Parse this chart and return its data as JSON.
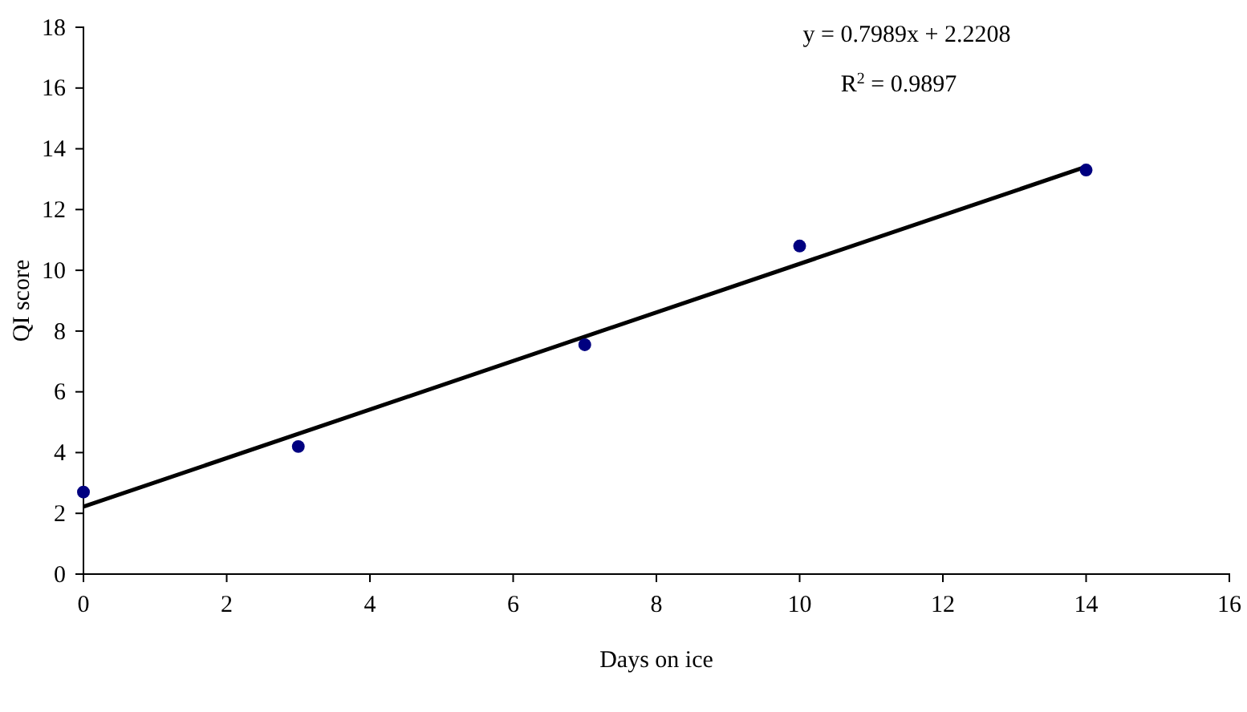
{
  "chart_data": {
    "type": "scatter",
    "xlabel": "Days on ice",
    "ylabel": "QI score",
    "xlim": [
      0,
      16
    ],
    "xticks": [
      0,
      2,
      4,
      6,
      8,
      10,
      12,
      14,
      16
    ],
    "ylim": [
      0,
      18
    ],
    "yticks": [
      0,
      2,
      4,
      6,
      8,
      10,
      12,
      14,
      16,
      18
    ],
    "grid": false,
    "series": [
      {
        "type": "scatter",
        "marker": "circle",
        "color": "#000080",
        "x": [
          0,
          3,
          7,
          10,
          14
        ],
        "values": [
          2.7,
          4.2,
          7.55,
          10.8,
          13.3
        ]
      },
      {
        "type": "line",
        "line_style": "solid",
        "color": "#000000",
        "x": [
          0,
          14
        ],
        "values": [
          2.22,
          13.41
        ]
      }
    ],
    "annotations": [
      "y = 0.7989x + 2.2208",
      "R$^{2}$ = 0.9897"
    ]
  }
}
